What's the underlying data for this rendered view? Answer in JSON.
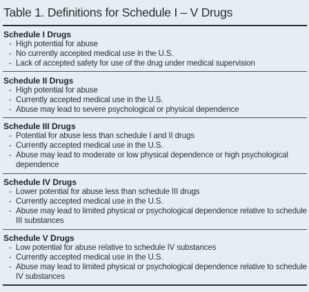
{
  "title": "Table 1. Definitions for Schedule I – V Drugs",
  "schedules": [
    {
      "heading": "Schedule I Drugs",
      "criteria": [
        "High potential for abuse",
        "No currently accepted medical use in the U.S.",
        "Lack of accepted safety for use of the drug under medical supervision"
      ]
    },
    {
      "heading": "Schedule II Drugs",
      "criteria": [
        "High potential for abuse",
        "Currently accepted medical use in the U.S.",
        "Abuse may lead to severe psychological or physical dependence"
      ]
    },
    {
      "heading": "Schedule III Drugs",
      "criteria": [
        "Potential for abuse less than schedule I and II drugs",
        "Currently accepted medical use in the U.S.",
        "Abuse may lead to moderate or low physical dependence or high psychological dependence"
      ]
    },
    {
      "heading": "Schedule IV Drugs",
      "criteria": [
        "Lower potential for abuse less than schedule III drugs",
        "Currently accepted medical use in the U.S.",
        "Abuse may lead to limited physical or psychological dependence relative to schedule III substances"
      ]
    },
    {
      "heading": "Schedule V Drugs",
      "criteria": [
        "Low potential for abuse relative to schedule IV substances",
        "Currently accepted medical use in the U.S.",
        "Abuse may lead to limited physical or psychological dependence relative to schedule IV substances"
      ]
    }
  ]
}
